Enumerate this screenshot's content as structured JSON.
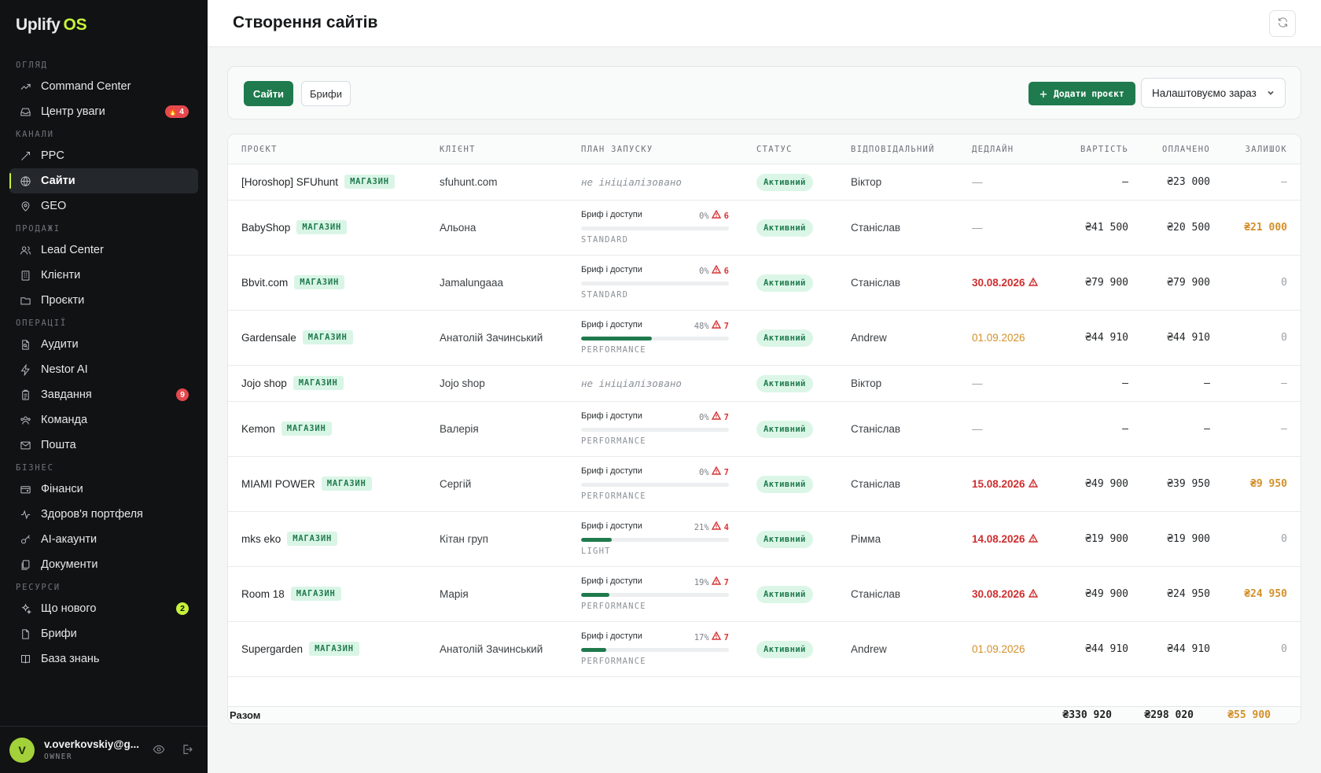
{
  "app": {
    "name": "Uplify",
    "name_suffix": "OS"
  },
  "sidebar": {
    "sections": [
      {
        "title": "ОГЛЯД",
        "items": [
          {
            "label": "Command Center",
            "icon": "trending-icon"
          },
          {
            "label": "Центр уваги",
            "icon": "inbox-icon",
            "badge": "4",
            "badge_emoji": "🔥"
          }
        ]
      },
      {
        "title": "КАНАЛИ",
        "items": [
          {
            "label": "PPC",
            "icon": "target-icon"
          },
          {
            "label": "Сайти",
            "icon": "globe-icon",
            "active": true
          },
          {
            "label": "GEO",
            "icon": "map-pin-icon"
          }
        ]
      },
      {
        "title": "ПРОДАЖІ",
        "items": [
          {
            "label": "Lead Center",
            "icon": "users-icon"
          },
          {
            "label": "Клієнти",
            "icon": "building-icon"
          },
          {
            "label": "Проєкти",
            "icon": "folder-icon"
          }
        ]
      },
      {
        "title": "ОПЕРАЦІЇ",
        "items": [
          {
            "label": "Аудити",
            "icon": "file-search-icon"
          },
          {
            "label": "Nestor AI",
            "icon": "zap-icon"
          },
          {
            "label": "Завдання",
            "icon": "clipboard-icon",
            "badge": "9"
          },
          {
            "label": "Команда",
            "icon": "team-icon"
          },
          {
            "label": "Пошта",
            "icon": "mail-icon"
          }
        ]
      },
      {
        "title": "БІЗНЕС",
        "items": [
          {
            "label": "Фінанси",
            "icon": "wallet-icon"
          },
          {
            "label": "Здоров'я портфеля",
            "icon": "activity-icon"
          },
          {
            "label": "AI-акаунти",
            "icon": "key-icon"
          },
          {
            "label": "Документи",
            "icon": "documents-icon"
          }
        ]
      },
      {
        "title": "РЕСУРСИ",
        "items": [
          {
            "label": "Що нового",
            "icon": "sparkles-icon",
            "badge": "2",
            "badge_color": "green"
          },
          {
            "label": "Брифи",
            "icon": "file-icon"
          },
          {
            "label": "База знань",
            "icon": "book-icon"
          }
        ]
      }
    ]
  },
  "user": {
    "initial": "V",
    "email": "v.overkovskiy@g...",
    "role": "OWNER"
  },
  "header": {
    "title": "Створення сайтів"
  },
  "toolbar": {
    "tab_sites": "Сайти",
    "tab_briefs": "Брифи",
    "add_project": "Додати проєкт",
    "filter_value": "Налаштовуємо зараз"
  },
  "table": {
    "columns": {
      "project": "ПРОЄКТ",
      "client": "КЛІЄНТ",
      "plan": "ПЛАН ЗАПУСКУ",
      "status": "СТАТУС",
      "owner": "ВІДПОВІДАЛЬНИЙ",
      "deadline": "ДЕДЛАЙН",
      "cost": "ВАРТІСТЬ",
      "paid": "ОПЛАЧЕНО",
      "rest": "ЗАЛИШОК"
    },
    "rows": [
      {
        "name": "[Horoshop] SFUhunt",
        "tag": "МАГАЗИН",
        "client": "sfuhunt.com",
        "plan_empty": "не ініціалізовано",
        "status": "Активний",
        "owner": "Віктор",
        "deadline": "—",
        "deadline_kind": "none",
        "cost": "—",
        "paid": "₴23 000",
        "rest": "—",
        "rest_kind": "dash"
      },
      {
        "name": "BabyShop",
        "tag": "МАГАЗИН",
        "client": "Альона",
        "plan_label": "Бриф і доступи",
        "plan_pct": "0%",
        "plan_progress": 0,
        "plan_warn": "6",
        "plan_tier": "STANDARD",
        "status": "Активний",
        "owner": "Станіслав",
        "deadline": "—",
        "deadline_kind": "none",
        "cost": "₴41 500",
        "paid": "₴20 500",
        "rest": "₴21 000",
        "rest_kind": "due"
      },
      {
        "name": "Bbvit.com",
        "tag": "МАГАЗИН",
        "client": "Jamalungaaa",
        "plan_label": "Бриф і доступи",
        "plan_pct": "0%",
        "plan_progress": 0,
        "plan_warn": "6",
        "plan_tier": "STANDARD",
        "status": "Активний",
        "owner": "Станіслав",
        "deadline": "30.08.2026",
        "deadline_kind": "red",
        "cost": "₴79 900",
        "paid": "₴79 900",
        "rest": "0",
        "rest_kind": "zero"
      },
      {
        "name": "Gardensale",
        "tag": "МАГАЗИН",
        "client": "Анатолій Зачинський",
        "plan_label": "Бриф і доступи",
        "plan_pct": "48%",
        "plan_progress": 0.48,
        "plan_warn": "7",
        "plan_tier": "PERFORMANCE",
        "status": "Активний",
        "owner": "Andrew",
        "deadline": "01.09.2026",
        "deadline_kind": "orange",
        "cost": "₴44 910",
        "paid": "₴44 910",
        "rest": "0",
        "rest_kind": "zero"
      },
      {
        "name": "Jojo shop",
        "tag": "МАГАЗИН",
        "client": "Jojo shop",
        "plan_empty": "не ініціалізовано",
        "status": "Активний",
        "owner": "Віктор",
        "deadline": "—",
        "deadline_kind": "none",
        "cost": "—",
        "paid": "—",
        "rest": "—",
        "rest_kind": "dash"
      },
      {
        "name": "Kemon",
        "tag": "МАГАЗИН",
        "client": "Валерія",
        "plan_label": "Бриф і доступи",
        "plan_pct": "0%",
        "plan_progress": 0,
        "plan_warn": "7",
        "plan_tier": "PERFORMANCE",
        "status": "Активний",
        "owner": "Станіслав",
        "deadline": "—",
        "deadline_kind": "none",
        "cost": "—",
        "paid": "—",
        "rest": "—",
        "rest_kind": "dash"
      },
      {
        "name": "MIAMI POWER",
        "tag": "МАГАЗИН",
        "client": "Сергій",
        "plan_label": "Бриф і доступи",
        "plan_pct": "0%",
        "plan_progress": 0,
        "plan_warn": "7",
        "plan_tier": "PERFORMANCE",
        "status": "Активний",
        "owner": "Станіслав",
        "deadline": "15.08.2026",
        "deadline_kind": "red",
        "cost": "₴49 900",
        "paid": "₴39 950",
        "rest": "₴9 950",
        "rest_kind": "due"
      },
      {
        "name": "mks eko",
        "tag": "МАГАЗИН",
        "client": "Кітан груп",
        "plan_label": "Бриф і доступи",
        "plan_pct": "21%",
        "plan_progress": 0.21,
        "plan_warn": "4",
        "plan_tier": "LIGHT",
        "status": "Активний",
        "owner": "Рімма",
        "deadline": "14.08.2026",
        "deadline_kind": "red",
        "cost": "₴19 900",
        "paid": "₴19 900",
        "rest": "0",
        "rest_kind": "zero"
      },
      {
        "name": "Room 18",
        "tag": "МАГАЗИН",
        "client": "Марія",
        "plan_label": "Бриф і доступи",
        "plan_pct": "19%",
        "plan_progress": 0.19,
        "plan_warn": "7",
        "plan_tier": "PERFORMANCE",
        "status": "Активний",
        "owner": "Станіслав",
        "deadline": "30.08.2026",
        "deadline_kind": "red",
        "cost": "₴49 900",
        "paid": "₴24 950",
        "rest": "₴24 950",
        "rest_kind": "due"
      },
      {
        "name": "Supergarden",
        "tag": "МАГАЗИН",
        "client": "Анатолій Зачинський",
        "plan_label": "Бриф і доступи",
        "plan_pct": "17%",
        "plan_progress": 0.17,
        "plan_warn": "7",
        "plan_tier": "PERFORMANCE",
        "status": "Активний",
        "owner": "Andrew",
        "deadline": "01.09.2026",
        "deadline_kind": "orange",
        "cost": "₴44 910",
        "paid": "₴44 910",
        "rest": "0",
        "rest_kind": "zero"
      }
    ],
    "totals": {
      "label": "Разом",
      "cost": "₴330 920",
      "paid": "₴298 020",
      "rest": "₴55 900"
    }
  },
  "colors": {
    "accent": "#1f7a4d",
    "brand_lime": "#c6f23a",
    "danger": "#cf2e2e",
    "warning": "#d3902a",
    "sidebar_bg": "#111214"
  }
}
